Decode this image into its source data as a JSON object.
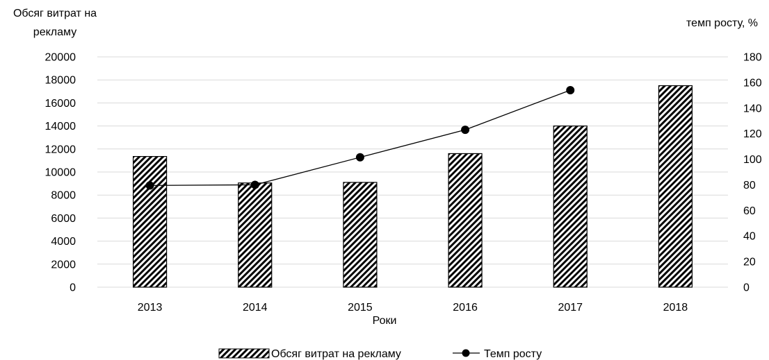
{
  "chart_data": {
    "type": "bar",
    "categories": [
      "2013",
      "2014",
      "2015",
      "2016",
      "2017",
      "2018"
    ],
    "series": [
      {
        "name": "Обсяг витрат на рекламу",
        "type": "bar",
        "axis": "left",
        "values": [
          11350,
          9050,
          9100,
          11600,
          14000,
          17500
        ]
      },
      {
        "name": "Темп росту",
        "type": "line",
        "axis": "right",
        "values": [
          79.5,
          80,
          101.5,
          123,
          154,
          null
        ]
      }
    ],
    "ylabel_left_line1": "Обсяг витрат на",
    "ylabel_left_line2": "рекламу",
    "ylabel_right": "темп росту, %",
    "xlabel": "Роки",
    "ylim_left": [
      0,
      20000
    ],
    "yticks_left": [
      "0",
      "2000",
      "4000",
      "6000",
      "8000",
      "10000",
      "12000",
      "14000",
      "16000",
      "18000",
      "20000"
    ],
    "ylim_right": [
      0,
      180
    ],
    "yticks_right": [
      "0",
      "20",
      "40",
      "60",
      "80",
      "100",
      "120",
      "140",
      "160",
      "180"
    ],
    "grid": true,
    "legend_position": "bottom",
    "colors": {
      "bar_pattern_dark": "#000000",
      "bar_pattern_light": "#ffffff",
      "line": "#000000",
      "grid": "#d9d9d9"
    }
  }
}
